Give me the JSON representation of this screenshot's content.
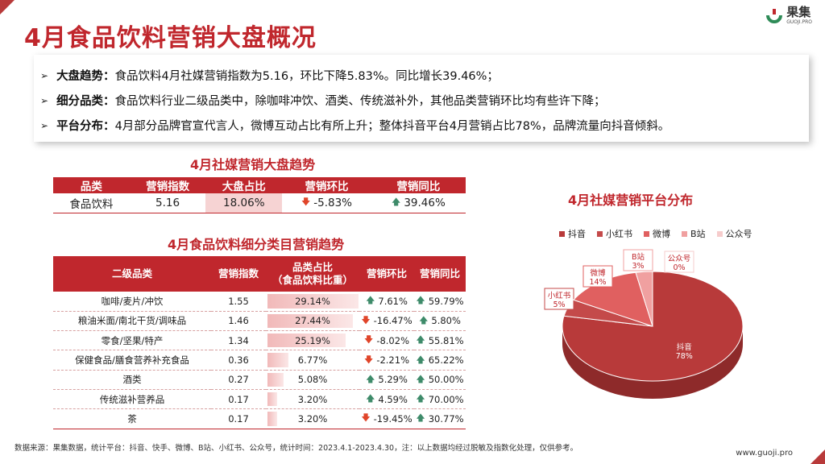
{
  "title": "4月食品饮料营销大盘概况",
  "logo": {
    "name": "果集",
    "sub": "GUOJI.PRO"
  },
  "summary": [
    {
      "label": "大盘趋势：",
      "text": "食品饮料4月社媒营销指数为5.16，环比下降5.83%。同比增长39.46%；"
    },
    {
      "label": "细分品类：",
      "text": "食品饮料行业二级品类中，除咖啡冲饮、酒类、传统滋补外，其他品类营销环比均有些许下降；"
    },
    {
      "label": "平台分布：",
      "text": "4月部分品牌官宣代言人，微博互动占比有所上升；整体抖音平台4月营销占比78%，品牌流量向抖音倾斜。"
    }
  ],
  "market_trend": {
    "title": "4月社媒营销大盘趋势",
    "headers": [
      "品类",
      "营销指数",
      "大盘占比",
      "营销环比",
      "营销同比"
    ],
    "row": {
      "category": "食品饮料",
      "index": "5.16",
      "share": "18.06%",
      "mom": "-5.83%",
      "mom_dir": "down",
      "yoy": "39.46%",
      "yoy_dir": "up"
    }
  },
  "subcategory": {
    "title": "4月食品饮料细分类目营销趋势",
    "headers": {
      "cat": "二级品类",
      "index": "营销指数",
      "share_line1": "品类占比",
      "share_line2": "（食品饮料比重）",
      "mom": "营销环比",
      "yoy": "营销同比"
    },
    "rows": [
      {
        "cat": "咖啡/麦片/冲饮",
        "index": "1.55",
        "share": "29.14%",
        "share_num": 29.14,
        "mom": "7.61%",
        "mom_dir": "up",
        "yoy": "59.79%",
        "yoy_dir": "up"
      },
      {
        "cat": "粮油米面/南北干货/调味品",
        "index": "1.46",
        "share": "27.44%",
        "share_num": 27.44,
        "mom": "-16.47%",
        "mom_dir": "down",
        "yoy": "5.80%",
        "yoy_dir": "up"
      },
      {
        "cat": "零食/坚果/特产",
        "index": "1.34",
        "share": "25.19%",
        "share_num": 25.19,
        "mom": "-8.02%",
        "mom_dir": "down",
        "yoy": "55.81%",
        "yoy_dir": "up"
      },
      {
        "cat": "保健食品/膳食营养补充食品",
        "index": "0.36",
        "share": "6.77%",
        "share_num": 6.77,
        "mom": "-2.21%",
        "mom_dir": "down",
        "yoy": "65.22%",
        "yoy_dir": "up"
      },
      {
        "cat": "酒类",
        "index": "0.27",
        "share": "5.08%",
        "share_num": 5.08,
        "mom": "5.29%",
        "mom_dir": "up",
        "yoy": "50.00%",
        "yoy_dir": "up"
      },
      {
        "cat": "传统滋补营养品",
        "index": "0.17",
        "share": "3.20%",
        "share_num": 3.2,
        "mom": "4.59%",
        "mom_dir": "up",
        "yoy": "70.00%",
        "yoy_dir": "up"
      },
      {
        "cat": "茶",
        "index": "0.17",
        "share": "3.20%",
        "share_num": 3.2,
        "mom": "-19.45%",
        "mom_dir": "down",
        "yoy": "30.77%",
        "yoy_dir": "up"
      }
    ]
  },
  "chart_data": {
    "type": "pie",
    "title": "4月社媒营销平台分布",
    "legend_position": "top",
    "slices": [
      {
        "name": "抖音",
        "label": "抖音",
        "value": 78,
        "value_label": "78%",
        "color": "#b83a3a"
      },
      {
        "name": "小红书",
        "label": "小红书",
        "value": 5,
        "value_label": "5%",
        "color": "#c44a4a"
      },
      {
        "name": "微博",
        "label": "微博",
        "value": 14,
        "value_label": "14%",
        "color": "#e06060"
      },
      {
        "name": "B站",
        "label": "B站",
        "value": 3,
        "value_label": "3%",
        "color": "#f0a0a0"
      },
      {
        "name": "公众号",
        "label": "公众号",
        "value": 0,
        "value_label": "0%",
        "color": "#f6cccc"
      }
    ]
  },
  "footer": "数据来源：果集数据，统计平台：抖音、快手、微博、B站、小红书、公众号，统计时间：2023.4.1-2023.4.30，注：以上数据均经过脱敏及指数化处理，仅供参考。",
  "site": "www.guoji.pro"
}
